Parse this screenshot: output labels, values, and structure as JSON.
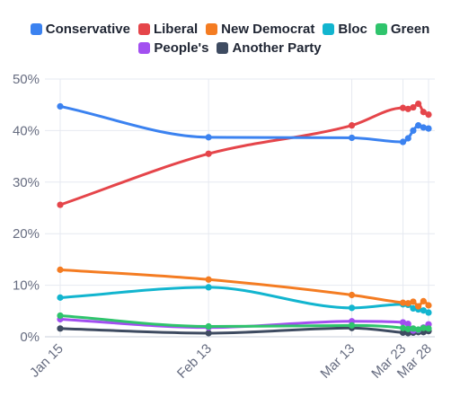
{
  "legend": {
    "items": [
      {
        "label": "Conservative",
        "color": "#3b82f0"
      },
      {
        "label": "Liberal",
        "color": "#e5454a"
      },
      {
        "label": "New Democrat",
        "color": "#f47c22"
      },
      {
        "label": "Bloc",
        "color": "#12b5cf"
      },
      {
        "label": "Green",
        "color": "#2fc46c"
      },
      {
        "label": "People's",
        "color": "#a24ff0"
      },
      {
        "label": "Another Party",
        "color": "#3e4b61"
      }
    ]
  },
  "chart_data": {
    "type": "line",
    "title": "",
    "xlabel": "",
    "ylabel": "",
    "ylim": [
      0,
      50
    ],
    "y_ticks": [
      "0%",
      "10%",
      "20%",
      "30%",
      "40%",
      "50%"
    ],
    "x_ticks": [
      {
        "label": "Jan 15",
        "date": "2025-01-15"
      },
      {
        "label": "Feb 13",
        "date": "2025-02-13"
      },
      {
        "label": "Mar 13",
        "date": "2025-03-13"
      },
      {
        "label": "Mar 23",
        "date": "2025-03-23"
      },
      {
        "label": "Mar 28",
        "date": "2025-03-28"
      }
    ],
    "grid": true,
    "legend_position": "top",
    "series": [
      {
        "name": "Conservative",
        "color": "#3b82f0",
        "points": [
          [
            "2025-01-15",
            44.7
          ],
          [
            "2025-02-13",
            38.7
          ],
          [
            "2025-03-13",
            38.6
          ],
          [
            "2025-03-23",
            37.8
          ],
          [
            "2025-03-24",
            38.5
          ],
          [
            "2025-03-25",
            40.0
          ],
          [
            "2025-03-26",
            41.0
          ],
          [
            "2025-03-27",
            40.6
          ],
          [
            "2025-03-28",
            40.4
          ]
        ]
      },
      {
        "name": "Liberal",
        "color": "#e5454a",
        "points": [
          [
            "2025-01-15",
            25.6
          ],
          [
            "2025-02-13",
            35.5
          ],
          [
            "2025-03-13",
            41.0
          ],
          [
            "2025-03-23",
            44.4
          ],
          [
            "2025-03-24",
            44.2
          ],
          [
            "2025-03-25",
            44.5
          ],
          [
            "2025-03-26",
            45.2
          ],
          [
            "2025-03-27",
            43.6
          ],
          [
            "2025-03-28",
            43.1
          ]
        ]
      },
      {
        "name": "New Democrat",
        "color": "#f47c22",
        "points": [
          [
            "2025-01-15",
            13.0
          ],
          [
            "2025-02-13",
            11.1
          ],
          [
            "2025-03-13",
            8.1
          ],
          [
            "2025-03-23",
            6.6
          ],
          [
            "2025-03-24",
            6.5
          ],
          [
            "2025-03-25",
            6.8
          ],
          [
            "2025-03-26",
            5.9
          ],
          [
            "2025-03-27",
            6.9
          ],
          [
            "2025-03-28",
            6.1
          ]
        ]
      },
      {
        "name": "Bloc",
        "color": "#12b5cf",
        "points": [
          [
            "2025-01-15",
            7.6
          ],
          [
            "2025-02-13",
            9.6
          ],
          [
            "2025-03-13",
            5.6
          ],
          [
            "2025-03-23",
            6.3
          ],
          [
            "2025-03-24",
            6.2
          ],
          [
            "2025-03-25",
            5.5
          ],
          [
            "2025-03-26",
            5.3
          ],
          [
            "2025-03-27",
            5.1
          ],
          [
            "2025-03-28",
            4.7
          ]
        ]
      },
      {
        "name": "Green",
        "color": "#2fc46c",
        "points": [
          [
            "2025-01-15",
            4.1
          ],
          [
            "2025-02-13",
            2.0
          ],
          [
            "2025-03-13",
            2.2
          ],
          [
            "2025-03-23",
            1.7
          ],
          [
            "2025-03-24",
            1.5
          ],
          [
            "2025-03-25",
            1.6
          ],
          [
            "2025-03-26",
            1.4
          ],
          [
            "2025-03-27",
            1.7
          ],
          [
            "2025-03-28",
            1.6
          ]
        ]
      },
      {
        "name": "People's",
        "color": "#a24ff0",
        "points": [
          [
            "2025-01-15",
            3.4
          ],
          [
            "2025-02-13",
            1.8
          ],
          [
            "2025-03-13",
            3.0
          ],
          [
            "2025-03-23",
            2.8
          ],
          [
            "2025-03-24",
            2.5
          ],
          [
            "2025-03-25",
            1.2
          ],
          [
            "2025-03-26",
            1.3
          ],
          [
            "2025-03-27",
            1.8
          ],
          [
            "2025-03-28",
            2.4
          ]
        ]
      },
      {
        "name": "Another Party",
        "color": "#3e4b61",
        "points": [
          [
            "2025-01-15",
            1.6
          ],
          [
            "2025-02-13",
            0.7
          ],
          [
            "2025-03-13",
            1.7
          ],
          [
            "2025-03-23",
            0.8
          ],
          [
            "2025-03-24",
            0.7
          ],
          [
            "2025-03-25",
            0.8
          ],
          [
            "2025-03-26",
            0.9
          ],
          [
            "2025-03-27",
            0.9
          ],
          [
            "2025-03-28",
            1.1
          ]
        ]
      }
    ]
  }
}
